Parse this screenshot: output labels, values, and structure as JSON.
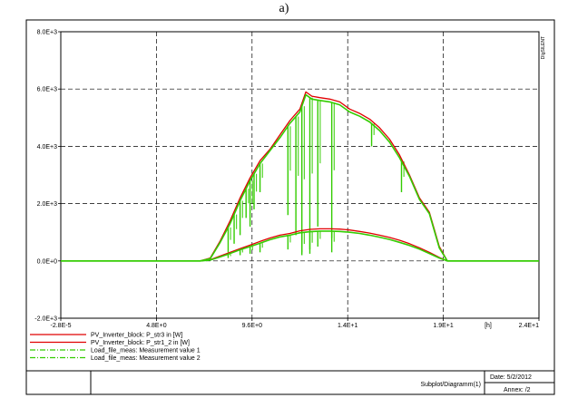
{
  "title": "a)",
  "chart_data": {
    "type": "line",
    "title": "",
    "xlabel": "",
    "ylabel": "",
    "x_unit_label": "[h]",
    "xlim": [
      -2.8e-05,
      24
    ],
    "ylim": [
      -2000,
      8000
    ],
    "x_tick_labels": [
      "-2.8E-5",
      "4.8E+0",
      "9.6E+0",
      "1.4E+1",
      "1.9E+1",
      "2.4E+1"
    ],
    "x_tick_values": [
      -2.8e-05,
      4.8,
      9.6,
      14.4,
      19.2,
      24
    ],
    "y_tick_labels": [
      "-2.0E+3",
      "0.0E+0",
      "2.0E+3",
      "4.0E+3",
      "6.0E+3",
      "8.0E+3"
    ],
    "y_tick_values": [
      -2000,
      0,
      2000,
      4000,
      6000,
      8000
    ],
    "grid": true,
    "legend_position": "bottom-left",
    "series": [
      {
        "name": "PV_Inverter_block: P_str3 in [W]",
        "color": "#e00000",
        "style": "solid",
        "x": [
          0,
          7.0,
          7.5,
          8.0,
          8.5,
          9.0,
          9.5,
          10.0,
          10.5,
          11.0,
          11.5,
          12.0,
          12.3,
          12.6,
          13.0,
          13.5,
          14.0,
          14.5,
          15.0,
          15.5,
          16.0,
          16.5,
          17.0,
          17.5,
          18.0,
          18.5,
          19.0,
          19.4,
          24
        ],
        "y": [
          0,
          0,
          100,
          700,
          1400,
          2200,
          2900,
          3500,
          3900,
          4400,
          4900,
          5300,
          5900,
          5750,
          5700,
          5650,
          5550,
          5300,
          5150,
          4950,
          4650,
          4250,
          3700,
          3000,
          2200,
          1700,
          500,
          0,
          0
        ]
      },
      {
        "name": "PV_Inverter_block: P_str1_2 in [W]",
        "color": "#e00000",
        "style": "solid",
        "x": [
          0,
          7.0,
          7.5,
          8.0,
          8.5,
          9.0,
          9.5,
          10.0,
          10.5,
          11.0,
          11.5,
          12.0,
          12.5,
          13.0,
          13.5,
          14.0,
          14.5,
          15.0,
          15.5,
          16.0,
          16.5,
          17.0,
          17.5,
          18.0,
          18.5,
          19.0,
          19.4,
          24
        ],
        "y": [
          0,
          0,
          40,
          170,
          300,
          430,
          550,
          680,
          800,
          900,
          960,
          1050,
          1100,
          1120,
          1120,
          1110,
          1080,
          1030,
          970,
          900,
          820,
          720,
          600,
          460,
          300,
          120,
          0,
          0
        ]
      },
      {
        "name": "Load_file_meas: Measurement value 1",
        "color": "#33cc00",
        "style": "dash-dot",
        "x": [
          0,
          7.0,
          7.5,
          8.0,
          8.5,
          9.0,
          9.5,
          10.0,
          10.5,
          11.0,
          11.5,
          12.0,
          12.3,
          12.6,
          13.0,
          13.5,
          14.0,
          14.5,
          15.0,
          15.5,
          16.0,
          16.5,
          17.0,
          17.5,
          18.0,
          18.5,
          19.0,
          19.4,
          24
        ],
        "y": [
          0,
          0,
          80,
          650,
          1300,
          2100,
          2800,
          3400,
          3850,
          4300,
          4800,
          5200,
          5800,
          5650,
          5600,
          5550,
          5450,
          5200,
          5050,
          4850,
          4550,
          4150,
          3600,
          2950,
          2150,
          1650,
          450,
          0,
          0
        ]
      },
      {
        "name": "Load_file_meas: Measurement value 2",
        "color": "#33cc00",
        "style": "dash-dot",
        "x": [
          0,
          7.0,
          7.5,
          8.0,
          8.5,
          9.0,
          9.5,
          10.0,
          10.5,
          11.0,
          11.5,
          12.0,
          12.5,
          13.0,
          13.5,
          14.0,
          14.5,
          15.0,
          15.5,
          16.0,
          16.5,
          17.0,
          17.5,
          18.0,
          18.5,
          19.0,
          19.4,
          24
        ],
        "y": [
          0,
          0,
          30,
          140,
          260,
          390,
          500,
          620,
          740,
          840,
          900,
          980,
          1020,
          1040,
          1040,
          1030,
          1000,
          960,
          900,
          830,
          750,
          650,
          540,
          410,
          260,
          100,
          0,
          0
        ]
      }
    ],
    "annotations": [
      {
        "name": "cloud dips value 1",
        "x": [
          8.4,
          8.7,
          9.0,
          9.3,
          9.5,
          9.7,
          10.0,
          11.4,
          11.8,
          12.1,
          12.5,
          12.9,
          13.6,
          15.6,
          17.1
        ],
        "y_low": [
          300,
          600,
          900,
          1500,
          1200,
          1800,
          2400,
          1600,
          900,
          300,
          400,
          1200,
          800,
          4000,
          2400
        ]
      },
      {
        "name": "cloud dips value 2",
        "x": [
          8.4,
          9.0,
          9.5,
          10.0,
          11.4,
          12.1,
          12.5,
          12.9,
          13.6
        ],
        "y_low": [
          100,
          200,
          250,
          300,
          400,
          200,
          250,
          500,
          300
        ]
      }
    ]
  },
  "footer": {
    "diagram_label": "Subplot/Diagramm(1)",
    "date_label": "Date:  5/2/2012",
    "annex_label": "Annex:   /2"
  },
  "watermark": "DIgSILENT"
}
